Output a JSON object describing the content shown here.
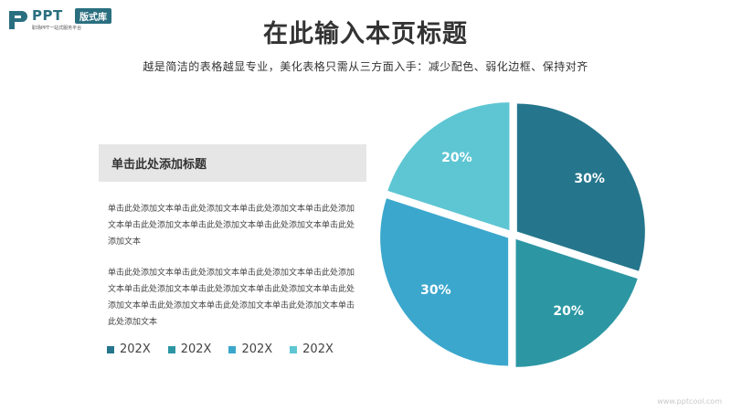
{
  "logo": {
    "brand": "PPT",
    "badge": "版式库",
    "tagline": "职场PPT一站式服务平台",
    "icon": "ppt-logo-icon"
  },
  "header": {
    "title": "在此输入本页标题",
    "subtitle": "越是简洁的表格越显专业，美化表格只需从三方面入手：减少配色、弱化边框、保持对齐"
  },
  "section": {
    "heading": "单击此处添加标题",
    "paragraph_1": "单击此处添加文本单击此处添加文本单击此处添加文本单击此处添加文本单击此处添加文本单击此处添加文本单击此处添加文本单击此处添加文本",
    "paragraph_2": "单击此处添加文本单击此处添加文本单击此处添加文本单击此处添加文本单击此处添加文本单击此处添加文本单击此处添加文本单击此处添加文本单击此处添加文本单击此处添加文本单击此处添加文本单击此处添加文本"
  },
  "colors": [
    "#25768c",
    "#2c97a3",
    "#3ba7cd",
    "#5ec6d3"
  ],
  "chart_data": {
    "type": "pie",
    "categories": [
      "202X",
      "202X",
      "202X",
      "202X"
    ],
    "values": [
      30,
      20,
      30,
      20
    ],
    "labels": [
      "30%",
      "20%",
      "30%",
      "20%"
    ],
    "legend": "bottom-left",
    "exploded": true
  },
  "watermark": "www.pptcool.com"
}
